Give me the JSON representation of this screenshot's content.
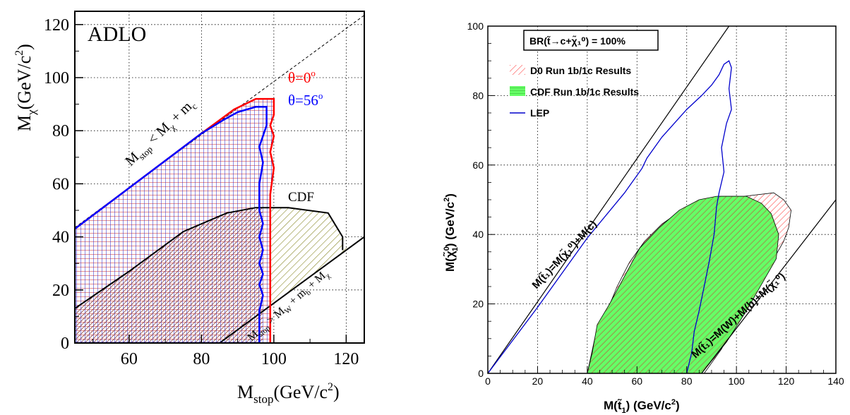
{
  "chart_data": [
    {
      "type": "area",
      "id": "left",
      "xlim": [
        45,
        125
      ],
      "ylim": [
        0,
        125
      ],
      "xticks": [
        60,
        80,
        100,
        120
      ],
      "yticks": [
        0,
        20,
        40,
        60,
        80,
        100,
        120
      ],
      "grid": true,
      "tick_labels_x": [
        "60",
        "80",
        "100",
        "120"
      ],
      "tick_labels_y": [
        "0",
        "20",
        "40",
        "60",
        "80",
        "100",
        "120"
      ],
      "xlabel_main": "M",
      "xlabel_sub": "stop",
      "xlabel_unit": "(GeV/c",
      "xlabel_sup": "2",
      "xlabel_close": ")",
      "ylabel_main": "M",
      "ylabel_sub": "χ",
      "ylabel_unit": "(GeV/c",
      "ylabel_sup": "2",
      "ylabel_close": ")",
      "panel_label": "ADLO",
      "annotations": {
        "kin_upper_main": "M",
        "kin_upper_sub": "stop",
        "kin_upper_mid": " < M",
        "kin_upper_sub2": "χ",
        "kin_upper_end": " + m",
        "kin_upper_sub3": "c",
        "kin_lower_main": "M",
        "kin_lower_sub": "stop",
        "kin_lower_mid": " > M",
        "kin_lower_sub2": "W",
        "kin_lower_mid2": " + m",
        "kin_lower_sub3": "b",
        "kin_lower_end": " + M",
        "kin_lower_sub4": "χ",
        "theta0_main": "θ=0",
        "theta0_sup": "o",
        "theta56_main": "θ=56",
        "theta56_sup": "o",
        "cdf": "CDF"
      },
      "colors": {
        "theta0": "#ff0000",
        "theta56": "#0000ff",
        "cdf": "#000000",
        "hatch_cdf": "#8a8a2a",
        "hatch_grid_red": "#cc2222",
        "hatch_grid_blue": "#2222cc"
      },
      "series": [
        {
          "name": "θ=0°",
          "points": [
            [
              45,
              43
            ],
            [
              80,
              79
            ],
            [
              85,
              84
            ],
            [
              89,
              88
            ],
            [
              95,
              92
            ],
            [
              100,
              92
            ],
            [
              100,
              86
            ],
            [
              99,
              82
            ],
            [
              100,
              78
            ],
            [
              99,
              72
            ],
            [
              100,
              66
            ],
            [
              99,
              56
            ],
            [
              99,
              40
            ],
            [
              99,
              20
            ],
            [
              99,
              0
            ]
          ]
        },
        {
          "name": "θ=56°",
          "points": [
            [
              45,
              0
            ],
            [
              45,
              43
            ],
            [
              80,
              79
            ],
            [
              86,
              84
            ],
            [
              90,
              87
            ],
            [
              95,
              89
            ],
            [
              98,
              89
            ],
            [
              98,
              82
            ],
            [
              97,
              78
            ],
            [
              96,
              74
            ],
            [
              97,
              68
            ],
            [
              96,
              60
            ],
            [
              96,
              50
            ],
            [
              97,
              45
            ],
            [
              96,
              40
            ],
            [
              97,
              35
            ],
            [
              96,
              30
            ],
            [
              97,
              26
            ],
            [
              96,
              22
            ],
            [
              97,
              18
            ],
            [
              96,
              12
            ],
            [
              96,
              0
            ],
            [
              45,
              0
            ]
          ]
        },
        {
          "name": "CDF",
          "points": [
            [
              45,
              13
            ],
            [
              60,
              27
            ],
            [
              75,
              42
            ],
            [
              87,
              49
            ],
            [
              95,
              51
            ],
            [
              104,
              51
            ],
            [
              115,
              49
            ],
            [
              119,
              40
            ],
            [
              119,
              35
            ]
          ]
        }
      ],
      "kinematic_upper": [
        [
          45,
          43.5
        ],
        [
          125,
          123.5
        ]
      ],
      "kinematic_lower": [
        [
          85,
          0
        ],
        [
          125,
          40
        ]
      ]
    },
    {
      "type": "area",
      "id": "right",
      "xlim": [
        0,
        140
      ],
      "ylim": [
        0,
        100
      ],
      "xticks": [
        0,
        20,
        40,
        60,
        80,
        100,
        120,
        140
      ],
      "yticks": [
        0,
        20,
        40,
        60,
        80,
        100
      ],
      "grid": true,
      "tick_labels_x": [
        "0",
        "20",
        "40",
        "60",
        "80",
        "100",
        "120",
        "140"
      ],
      "tick_labels_y": [
        "0",
        "20",
        "40",
        "60",
        "80",
        "100"
      ],
      "xlabel_text": "M(t̃",
      "xlabel_sub": "1",
      "xlabel_unit": ") (GeV/c",
      "xlabel_sup": "2",
      "xlabel_close": ")",
      "ylabel_text": "M(χ̃",
      "ylabel_sup": "0",
      "ylabel_sub": "1",
      "ylabel_unit": ") (GeV/c",
      "ylabel_sup2": "2",
      "ylabel_close": ")",
      "box_label": "BR(t̃→c+χ̃₁⁰) = 100%",
      "legend": [
        {
          "label": "D0 Run 1b/1c Results",
          "kind": "red-hatch"
        },
        {
          "label": "CDF Run 1b/1c Results",
          "kind": "green-hatch"
        },
        {
          "label": "LEP",
          "kind": "blue-line"
        }
      ],
      "diag_upper": "M(t̃₁)=M(χ̃₁⁰)+M(c)",
      "diag_lower": "M(t̃₁)=M(W)+M(b)+M(χ̃₁⁰)",
      "colors": {
        "d0": "#ff3333",
        "cdf_fill": "#66ff66",
        "cdf_hatch": "#cc3333",
        "lep": "#0000cc"
      },
      "series": [
        {
          "name": "D0 Run 1b/1c Results",
          "points": [
            [
              40,
              0
            ],
            [
              43,
              10
            ],
            [
              48,
              18
            ],
            [
              52,
              25
            ],
            [
              57,
              32
            ],
            [
              63,
              38
            ],
            [
              70,
              43
            ],
            [
              78,
              47
            ],
            [
              86,
              50
            ],
            [
              93,
              51
            ],
            [
              103,
              51
            ],
            [
              115,
              52
            ],
            [
              119,
              50
            ],
            [
              122,
              47
            ],
            [
              121,
              42
            ],
            [
              119,
              38
            ],
            [
              115,
              33
            ],
            [
              110,
              28
            ],
            [
              102,
              18
            ],
            [
              94,
              7
            ],
            [
              87,
              0
            ]
          ]
        },
        {
          "name": "CDF Run 1b/1c Results",
          "points": [
            [
              40,
              0
            ],
            [
              42,
              6
            ],
            [
              44,
              14
            ],
            [
              49,
              20
            ],
            [
              55,
              28
            ],
            [
              61,
              36
            ],
            [
              69,
              42
            ],
            [
              77,
              47
            ],
            [
              85,
              50
            ],
            [
              92,
              51
            ],
            [
              104,
              51
            ],
            [
              110,
              49
            ],
            [
              114,
              46
            ],
            [
              117,
              40
            ],
            [
              116,
              33
            ],
            [
              112,
              28
            ],
            [
              104,
              18
            ],
            [
              96,
              9
            ],
            [
              86,
              0
            ]
          ]
        },
        {
          "name": "LEP",
          "points": [
            [
              0,
              0
            ],
            [
              20,
              19
            ],
            [
              40,
              39
            ],
            [
              55,
              52
            ],
            [
              62,
              59
            ],
            [
              64,
              62
            ],
            [
              70,
              68
            ],
            [
              80,
              76
            ],
            [
              86,
              80
            ],
            [
              90,
              83
            ],
            [
              93,
              86
            ],
            [
              95,
              89
            ],
            [
              97,
              90
            ],
            [
              98,
              88
            ],
            [
              97,
              82
            ],
            [
              98,
              76
            ],
            [
              96,
              72
            ],
            [
              94,
              65
            ],
            [
              95,
              58
            ],
            [
              93,
              52
            ],
            [
              92,
              48
            ],
            [
              91,
              40
            ],
            [
              89,
              32
            ],
            [
              87,
              25
            ],
            [
              85,
              18
            ],
            [
              83,
              12
            ],
            [
              82,
              6
            ],
            [
              80,
              0
            ]
          ]
        }
      ],
      "diag_upper_line": [
        [
          0,
          0
        ],
        [
          97,
          100
        ]
      ],
      "diag_lower_line": [
        [
          86,
          0
        ],
        [
          140,
          50
        ]
      ]
    }
  ]
}
